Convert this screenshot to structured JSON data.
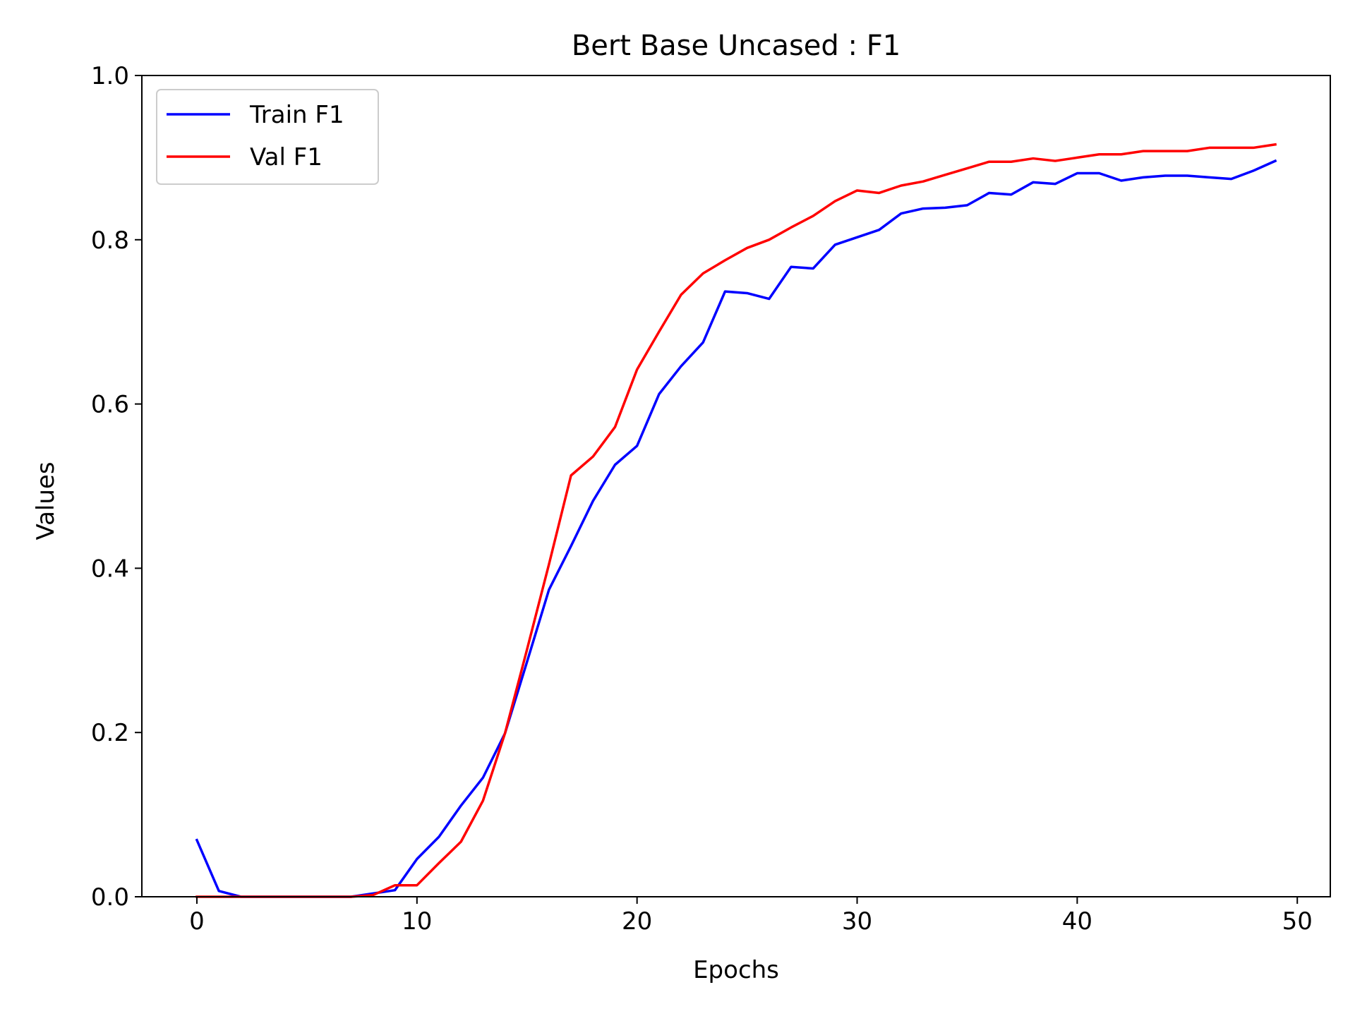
{
  "chart_data": {
    "type": "line",
    "title": "Bert Base Uncased : F1",
    "xlabel": "Epochs",
    "ylabel": "Values",
    "xlim": [
      -2.5,
      51.5
    ],
    "ylim": [
      0,
      1.0
    ],
    "x_ticks": [
      0,
      10,
      20,
      30,
      40,
      50
    ],
    "x_tick_labels": [
      "0",
      "10",
      "20",
      "30",
      "40",
      "50"
    ],
    "y_ticks": [
      0,
      0.2,
      0.4,
      0.6,
      0.8,
      1.0
    ],
    "y_tick_labels": [
      "0.0",
      "0.2",
      "0.4",
      "0.6",
      "0.8",
      "1.0"
    ],
    "grid": false,
    "legend_position": "top-left",
    "x": [
      0,
      1,
      2,
      3,
      4,
      5,
      6,
      7,
      8,
      9,
      10,
      11,
      12,
      13,
      14,
      15,
      16,
      17,
      18,
      19,
      20,
      21,
      22,
      23,
      24,
      25,
      26,
      27,
      28,
      29,
      30,
      31,
      32,
      33,
      34,
      35,
      36,
      37,
      38,
      39,
      40,
      41,
      42,
      43,
      44,
      45,
      46,
      47,
      48,
      49
    ],
    "series": [
      {
        "name": "Train F1",
        "color": "#0000ff",
        "values": [
          0.069,
          0.007,
          0.0,
          0.0,
          0.0,
          0.0,
          0.0,
          0.0,
          0.004,
          0.008,
          0.046,
          0.073,
          0.111,
          0.145,
          0.199,
          0.286,
          0.374,
          0.427,
          0.482,
          0.526,
          0.549,
          0.612,
          0.646,
          0.675,
          0.737,
          0.735,
          0.728,
          0.767,
          0.765,
          0.794,
          0.803,
          0.812,
          0.832,
          0.838,
          0.839,
          0.842,
          0.857,
          0.855,
          0.87,
          0.868,
          0.881,
          0.881,
          0.872,
          0.876,
          0.878,
          0.878,
          0.876,
          0.874,
          0.884,
          0.896
        ]
      },
      {
        "name": "Val F1",
        "color": "#ff0000",
        "values": [
          0.0,
          0.0,
          0.0,
          0.0,
          0.0,
          0.0,
          0.0,
          0.0,
          0.002,
          0.014,
          0.014,
          0.041,
          0.067,
          0.117,
          0.199,
          0.301,
          0.405,
          0.513,
          0.536,
          0.572,
          0.642,
          0.688,
          0.733,
          0.759,
          0.775,
          0.79,
          0.8,
          0.815,
          0.829,
          0.847,
          0.86,
          0.857,
          0.866,
          0.871,
          0.879,
          0.887,
          0.895,
          0.895,
          0.899,
          0.896,
          0.9,
          0.904,
          0.904,
          0.908,
          0.908,
          0.908,
          0.912,
          0.912,
          0.912,
          0.916
        ]
      }
    ]
  }
}
